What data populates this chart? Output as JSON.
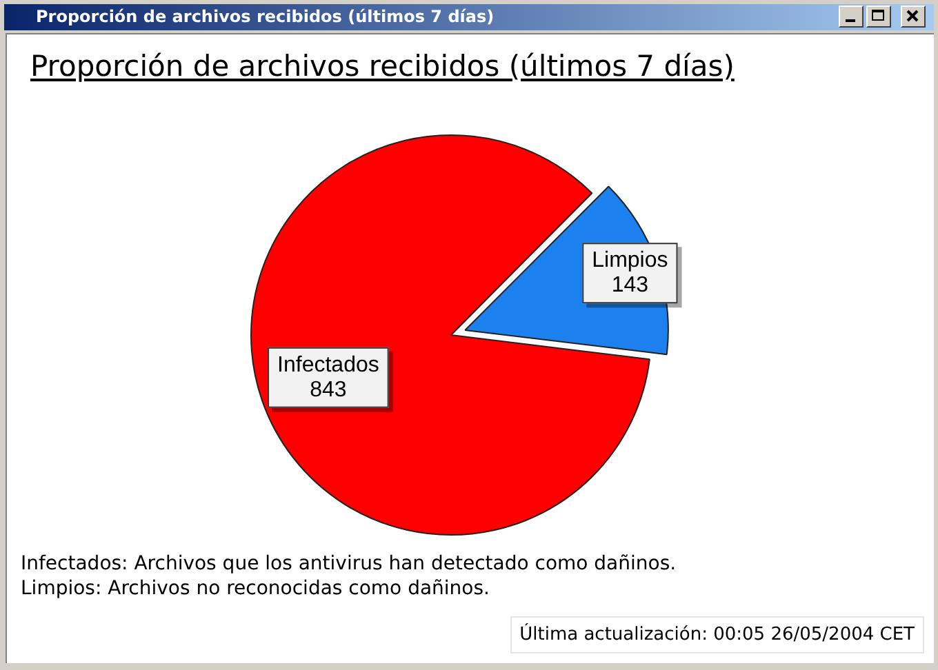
{
  "chart_data": {
    "type": "pie",
    "title": "Proporción de archivos recibidos (últimos 7 días)",
    "categories": [
      "Infectados",
      "Limpios"
    ],
    "values": [
      843,
      143
    ],
    "colors": [
      "#ff0000",
      "#1c80ee"
    ],
    "data_labels": true,
    "annotations": [
      "Proporción de archivos recibidos (últimos 7 días)",
      "Infectados: Archivos que los antivirus han detectado como dañinos.",
      "Limpios: Archivos no reconocidas como dañinos.",
      "Última actualización: 00:05 26/05/2004 CET"
    ]
  }
}
